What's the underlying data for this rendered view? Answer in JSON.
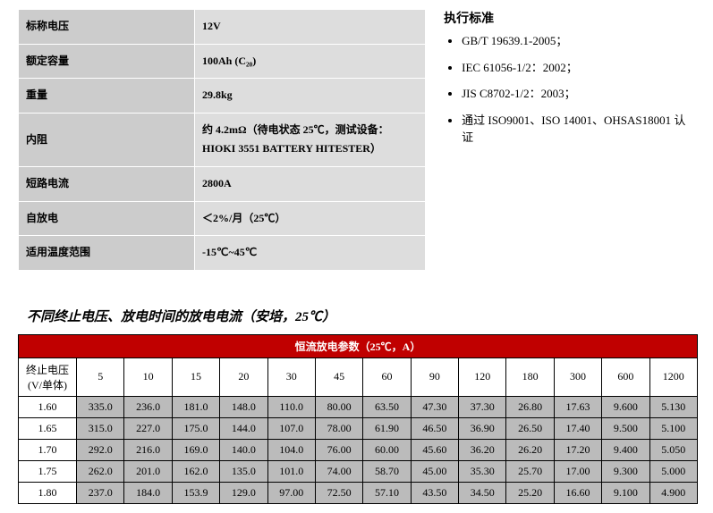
{
  "specs": {
    "rows": [
      {
        "label": "标称电压",
        "value": "12V"
      },
      {
        "label": "额定容量",
        "value": "100Ah (C₂₀)"
      },
      {
        "label": "重量",
        "value": "29.8kg"
      },
      {
        "label": "内阻",
        "value": "约 4.2mΩ（待电状态 25℃，测试设备：HIOKI 3551 BATTERY HITESTER）"
      },
      {
        "label": "短路电流",
        "value": "2800A"
      },
      {
        "label": "自放电",
        "value": "＜2%/月（25℃）"
      },
      {
        "label": "适用温度范围",
        "value": "-15℃~45℃"
      }
    ]
  },
  "standards": {
    "title": "执行标准",
    "items": [
      "GB/T 19639.1-2005；",
      "IEC 61056-1/2：2002；",
      "JIS C8702-1/2：2003；",
      "通过 ISO9001、ISO 14001、OHSAS18001 认证"
    ]
  },
  "discharge": {
    "section_title": "不同终止电压、放电时间的放电电流（安培，25℃）",
    "header": "恒流放电参数（25℃，A）",
    "row_label": "终止电压(V/单体)",
    "columns": [
      "5",
      "10",
      "15",
      "20",
      "30",
      "45",
      "60",
      "90",
      "120",
      "180",
      "300",
      "600",
      "1200"
    ],
    "rows": [
      {
        "v": "1.60",
        "cells": [
          "335.0",
          "236.0",
          "181.0",
          "148.0",
          "110.0",
          "80.00",
          "63.50",
          "47.30",
          "37.30",
          "26.80",
          "17.63",
          "9.600",
          "5.130"
        ]
      },
      {
        "v": "1.65",
        "cells": [
          "315.0",
          "227.0",
          "175.0",
          "144.0",
          "107.0",
          "78.00",
          "61.90",
          "46.50",
          "36.90",
          "26.50",
          "17.40",
          "9.500",
          "5.100"
        ]
      },
      {
        "v": "1.70",
        "cells": [
          "292.0",
          "216.0",
          "169.0",
          "140.0",
          "104.0",
          "76.00",
          "60.00",
          "45.60",
          "36.20",
          "26.20",
          "17.20",
          "9.400",
          "5.050"
        ]
      },
      {
        "v": "1.75",
        "cells": [
          "262.0",
          "201.0",
          "162.0",
          "135.0",
          "101.0",
          "74.00",
          "58.70",
          "45.00",
          "35.30",
          "25.70",
          "17.00",
          "9.300",
          "5.000"
        ]
      },
      {
        "v": "1.80",
        "cells": [
          "237.0",
          "184.0",
          "153.9",
          "129.0",
          "97.00",
          "72.50",
          "57.10",
          "43.50",
          "34.50",
          "25.20",
          "16.60",
          "9.100",
          "4.900"
        ]
      }
    ]
  }
}
